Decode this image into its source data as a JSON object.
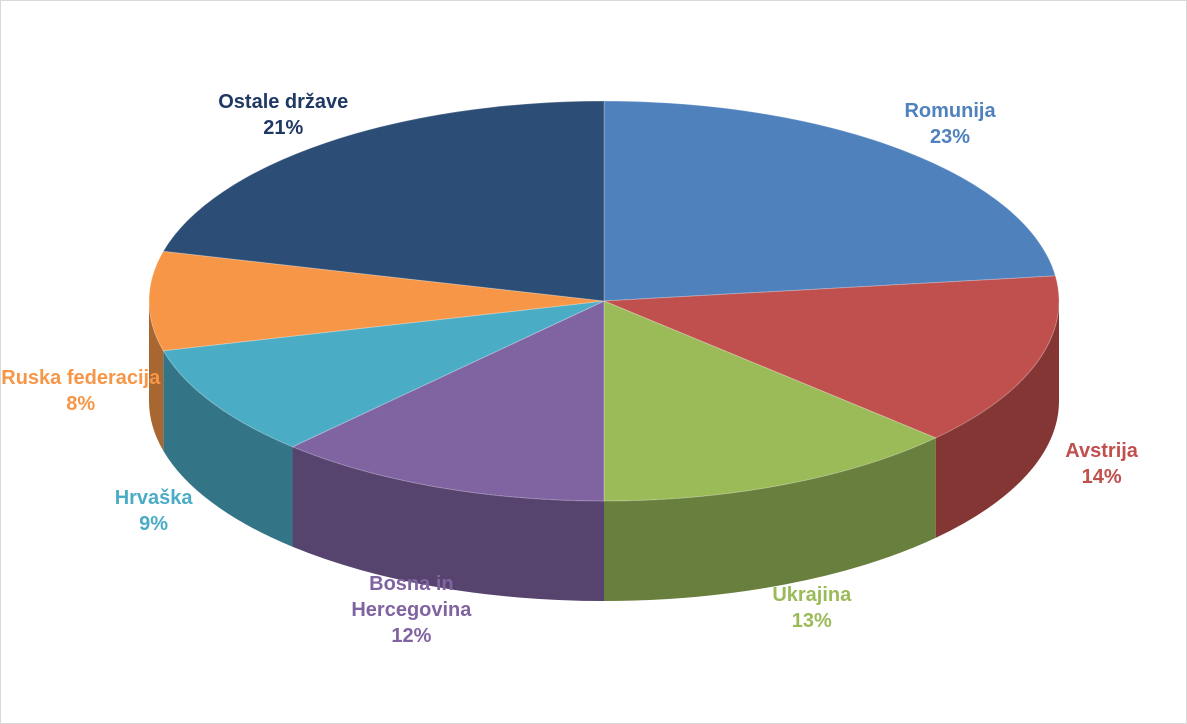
{
  "chart_data": {
    "type": "pie",
    "categories": [
      "Romunija",
      "Avstrija",
      "Ukrajina",
      "Bosna in Hercegovina",
      "Hrvaška",
      "Ruska federacija",
      "Ostale države"
    ],
    "values": [
      23,
      14,
      13,
      12,
      9,
      8,
      21
    ],
    "value_labels": [
      "23%",
      "14%",
      "13%",
      "12%",
      "9%",
      "8%",
      "21%"
    ],
    "colors": [
      "#4f81bd",
      "#c0504d",
      "#9bbb59",
      "#8064a2",
      "#4bacc6",
      "#f79646",
      "#2c4d75"
    ]
  }
}
